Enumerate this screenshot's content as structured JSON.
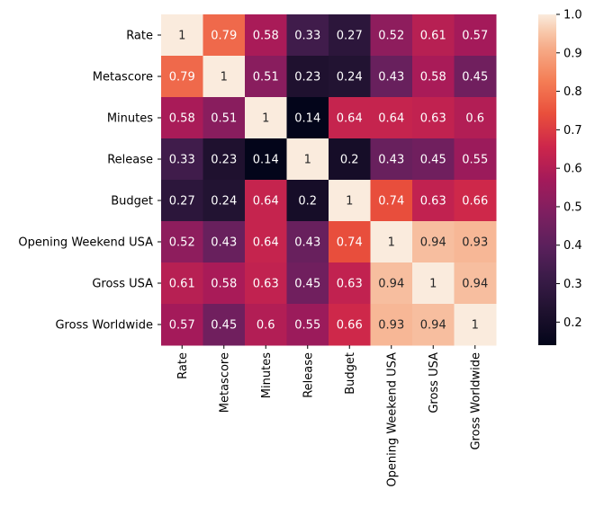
{
  "chart_data": {
    "type": "heatmap",
    "rows": [
      "Rate",
      "Metascore",
      "Minutes",
      "Release",
      "Budget",
      "Opening Weekend USA",
      "Gross USA",
      "Gross Worldwide"
    ],
    "columns": [
      "Rate",
      "Metascore",
      "Minutes",
      "Release",
      "Budget",
      "Opening Weekend USA",
      "Gross USA",
      "Gross Worldwide"
    ],
    "values": [
      [
        1,
        0.79,
        0.58,
        0.33,
        0.27,
        0.52,
        0.61,
        0.57
      ],
      [
        0.79,
        1,
        0.51,
        0.23,
        0.24,
        0.43,
        0.58,
        0.45
      ],
      [
        0.58,
        0.51,
        1,
        0.14,
        0.64,
        0.64,
        0.63,
        0.6
      ],
      [
        0.33,
        0.23,
        0.14,
        1,
        0.2,
        0.43,
        0.45,
        0.55
      ],
      [
        0.27,
        0.24,
        0.64,
        0.2,
        1,
        0.74,
        0.63,
        0.66
      ],
      [
        0.52,
        0.43,
        0.64,
        0.43,
        0.74,
        1,
        0.94,
        0.93
      ],
      [
        0.61,
        0.58,
        0.63,
        0.45,
        0.63,
        0.94,
        1,
        0.94
      ],
      [
        0.57,
        0.45,
        0.6,
        0.55,
        0.66,
        0.93,
        0.94,
        1
      ]
    ],
    "colorbar": {
      "ticks": [
        0.2,
        0.3,
        0.4,
        0.5,
        0.6,
        0.7,
        0.8,
        0.9,
        1.0
      ],
      "tick_labels": [
        "0.2",
        "0.3",
        "0.4",
        "0.5",
        "0.6",
        "0.7",
        "0.8",
        "0.9",
        "1.0"
      ],
      "range": [
        0.14,
        1.0
      ]
    },
    "colormap": "rocket",
    "annotated": true,
    "title": "",
    "xlabel": "",
    "ylabel": ""
  }
}
